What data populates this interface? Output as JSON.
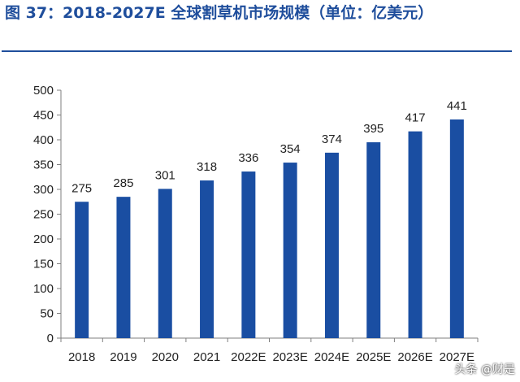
{
  "header": {
    "title": "图 37：2018-2027E 全球割草机市场规模（单位：亿美元）"
  },
  "watermark": "头条 @财是",
  "colors": {
    "bar": "#1a4ea2",
    "title": "#1f4e9c",
    "axis": "#7f7f7f"
  },
  "chart_data": {
    "type": "bar",
    "title": "",
    "xlabel": "",
    "ylabel": "",
    "categories": [
      "2018",
      "2019",
      "2020",
      "2021",
      "2022E",
      "2023E",
      "2024E",
      "2025E",
      "2026E",
      "2027E"
    ],
    "values": [
      275,
      285,
      301,
      318,
      336,
      354,
      374,
      395,
      417,
      441
    ],
    "ylim": [
      0,
      500
    ],
    "yticks": [
      0,
      50,
      100,
      150,
      200,
      250,
      300,
      350,
      400,
      450,
      500
    ],
    "data_labels": true,
    "grid": false,
    "legend": "none"
  }
}
